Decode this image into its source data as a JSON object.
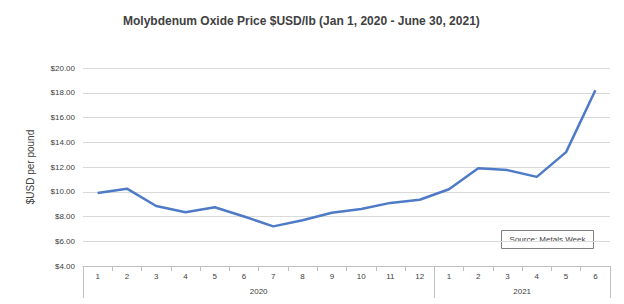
{
  "chart_data": {
    "type": "line",
    "title": "Molybdenum Oxide Price $USD/lb (Jan 1, 2020 - June 30, 2021)",
    "y_label": "$USD per pound",
    "categories": [
      "1",
      "2",
      "3",
      "4",
      "5",
      "6",
      "7",
      "8",
      "9",
      "10",
      "11",
      "12",
      "1",
      "2",
      "3",
      "4",
      "5",
      "6"
    ],
    "x_groups": [
      {
        "label": "2020",
        "size": 12
      },
      {
        "label": "2021",
        "size": 6
      }
    ],
    "values": [
      9.9,
      10.25,
      8.85,
      8.35,
      8.75,
      8.0,
      7.2,
      7.7,
      8.3,
      8.6,
      9.1,
      9.35,
      10.2,
      11.9,
      11.75,
      11.2,
      13.2,
      18.2
    ],
    "color": "#4e7ac7",
    "ylim": [
      4,
      20
    ],
    "yticks": [
      {
        "value": 4,
        "label": "$4.00"
      },
      {
        "value": 6,
        "label": "$6.00"
      },
      {
        "value": 8,
        "label": "$8.00"
      },
      {
        "value": 10,
        "label": "$10.00"
      },
      {
        "value": 12,
        "label": "$12.00"
      },
      {
        "value": 14,
        "label": "$14.00"
      },
      {
        "value": 16,
        "label": "$16.00"
      },
      {
        "value": 18,
        "label": "$18.00"
      },
      {
        "value": 20,
        "label": "$20.00"
      }
    ],
    "grid": true,
    "annotation": "Source: Metals Week"
  }
}
